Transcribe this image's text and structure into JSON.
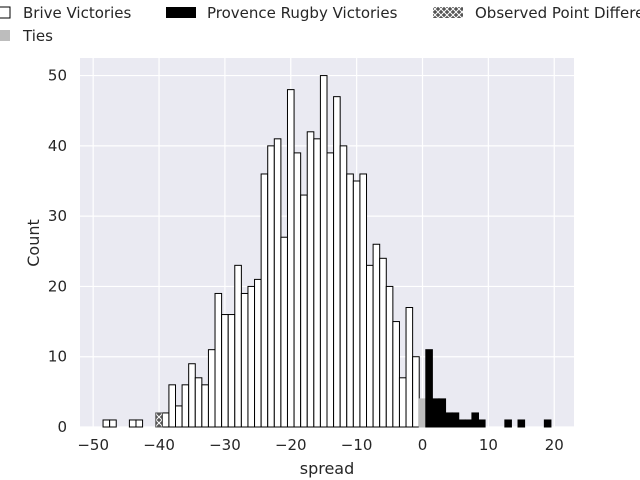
{
  "chart_data": {
    "type": "histogram",
    "title": "",
    "xlabel": "spread",
    "ylabel": "Count",
    "xlim": [
      -52,
      23
    ],
    "ylim": [
      0,
      52.5
    ],
    "xticks": [
      -50,
      -40,
      -30,
      -20,
      -10,
      0,
      10,
      20
    ],
    "yticks": [
      0,
      10,
      20,
      30,
      40,
      50
    ],
    "grid": true,
    "legend_position": "top",
    "legend": [
      {
        "key": "brive",
        "label": "Brive Victories"
      },
      {
        "key": "provence",
        "label": "Provence Rugby Victories"
      },
      {
        "key": "observed",
        "label": "Observed Point Differe"
      },
      {
        "key": "ties",
        "label": "Ties"
      }
    ],
    "series": [
      {
        "key": "brive",
        "name": "Brive Victories",
        "color": "#ffffff",
        "edge": "#000000",
        "bins": [
          {
            "x": -48,
            "y": 1
          },
          {
            "x": -47,
            "y": 1
          },
          {
            "x": -44,
            "y": 1
          },
          {
            "x": -43,
            "y": 1
          },
          {
            "x": -39,
            "y": 2
          },
          {
            "x": -38,
            "y": 6
          },
          {
            "x": -37,
            "y": 3
          },
          {
            "x": -36,
            "y": 6
          },
          {
            "x": -35,
            "y": 9
          },
          {
            "x": -34,
            "y": 7
          },
          {
            "x": -33,
            "y": 6
          },
          {
            "x": -32,
            "y": 11
          },
          {
            "x": -31,
            "y": 19
          },
          {
            "x": -30,
            "y": 16
          },
          {
            "x": -29,
            "y": 16
          },
          {
            "x": -28,
            "y": 23
          },
          {
            "x": -27,
            "y": 19
          },
          {
            "x": -26,
            "y": 20
          },
          {
            "x": -25,
            "y": 21
          },
          {
            "x": -24,
            "y": 36
          },
          {
            "x": -23,
            "y": 40
          },
          {
            "x": -22,
            "y": 41
          },
          {
            "x": -21,
            "y": 27
          },
          {
            "x": -20,
            "y": 48
          },
          {
            "x": -19,
            "y": 39
          },
          {
            "x": -18,
            "y": 33
          },
          {
            "x": -17,
            "y": 42
          },
          {
            "x": -16,
            "y": 41
          },
          {
            "x": -15,
            "y": 50
          },
          {
            "x": -14,
            "y": 39
          },
          {
            "x": -13,
            "y": 47
          },
          {
            "x": -12,
            "y": 40
          },
          {
            "x": -11,
            "y": 36
          },
          {
            "x": -10,
            "y": 35
          },
          {
            "x": -9,
            "y": 36
          },
          {
            "x": -8,
            "y": 23
          },
          {
            "x": -7,
            "y": 26
          },
          {
            "x": -6,
            "y": 24
          },
          {
            "x": -5,
            "y": 20
          },
          {
            "x": -4,
            "y": 15
          },
          {
            "x": -3,
            "y": 7
          },
          {
            "x": -2,
            "y": 17
          },
          {
            "x": -1,
            "y": 10
          }
        ]
      },
      {
        "key": "ties",
        "name": "Ties",
        "color": "#bdbdbd",
        "edge": "#bdbdbd",
        "bins": [
          {
            "x": 0,
            "y": 4
          }
        ]
      },
      {
        "key": "provence",
        "name": "Provence Rugby Victories",
        "color": "#000000",
        "edge": "#000000",
        "bins": [
          {
            "x": 1,
            "y": 11
          },
          {
            "x": 2,
            "y": 4
          },
          {
            "x": 3,
            "y": 4
          },
          {
            "x": 4,
            "y": 2
          },
          {
            "x": 5,
            "y": 2
          },
          {
            "x": 6,
            "y": 1
          },
          {
            "x": 7,
            "y": 1
          },
          {
            "x": 8,
            "y": 2
          },
          {
            "x": 9,
            "y": 1
          },
          {
            "x": 13,
            "y": 1
          },
          {
            "x": 15,
            "y": 1
          },
          {
            "x": 19,
            "y": 1
          }
        ]
      },
      {
        "key": "observed",
        "name": "Observed Point Differe",
        "color": "#555555",
        "edge": "#555555",
        "bins": [
          {
            "x": -40,
            "y": 2
          }
        ]
      }
    ]
  }
}
